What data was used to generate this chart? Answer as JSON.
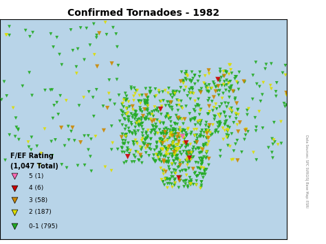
{
  "title": "Confirmed Tornadoes - 1982",
  "legend_title": "F/EF Rating",
  "legend_subtitle": "(1,047 Total)",
  "background_color": "#b8d4e8",
  "map_fill_color": "#c8c8c8",
  "map_edge_color": "#ffffff",
  "legend_box_color": "#ffffff",
  "ratings": [
    {
      "label": "5 (1)",
      "color": "#ff69b4",
      "count": 1,
      "rating": 5
    },
    {
      "label": "4 (6)",
      "color": "#cc0000",
      "count": 6,
      "rating": 4
    },
    {
      "label": "3 (58)",
      "color": "#cc8800",
      "count": 58,
      "rating": 3
    },
    {
      "label": "2 (187)",
      "color": "#dddd00",
      "count": 187,
      "rating": 2
    },
    {
      "label": "0-1 (795)",
      "color": "#22aa22",
      "count": 795,
      "rating": 1
    }
  ],
  "seed": 42,
  "us_lon_min": -125,
  "us_lon_max": -66,
  "us_lat_min": 24,
  "us_lat_max": 50
}
